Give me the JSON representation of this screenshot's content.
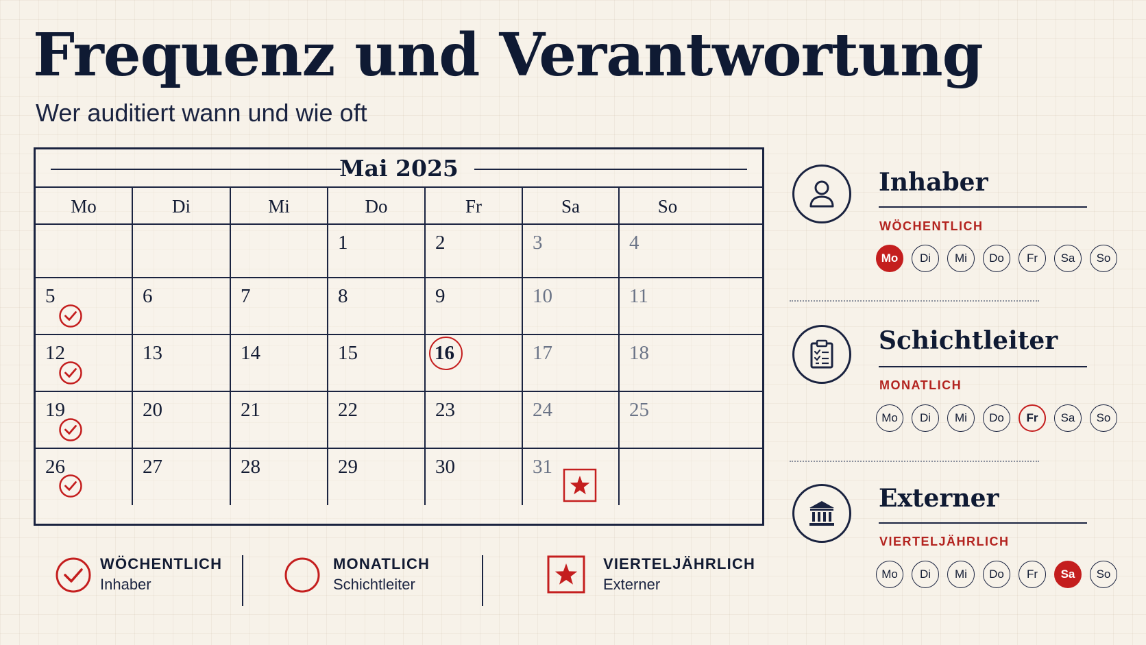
{
  "header": {
    "title": "Frequenz und Verantwortung",
    "subtitle": "Wer auditiert wann und wie oft"
  },
  "calendar": {
    "month_label": "Mai 2025",
    "weekdays": [
      "Mo",
      "Di",
      "Mi",
      "Do",
      "Fr",
      "Sa",
      "So"
    ],
    "weeks": [
      [
        "",
        "",
        "",
        "1",
        "2",
        "3",
        "4"
      ],
      [
        "5",
        "6",
        "7",
        "8",
        "9",
        "10",
        "11"
      ],
      [
        "12",
        "13",
        "14",
        "15",
        "16",
        "17",
        "18"
      ],
      [
        "19",
        "20",
        "21",
        "22",
        "23",
        "24",
        "25"
      ],
      [
        "26",
        "27",
        "28",
        "29",
        "30",
        "31",
        ""
      ]
    ],
    "weekly_audit_days": [
      "5",
      "12",
      "19",
      "26"
    ],
    "monthly_audit_day": "16",
    "quarterly_audit_day": "31"
  },
  "legend": [
    {
      "marker": "check-circle",
      "title": "WÖCHENTLICH",
      "role": "Inhaber"
    },
    {
      "marker": "circle",
      "title": "MONATLICH",
      "role": "Schichtleiter"
    },
    {
      "marker": "star-box",
      "title": "VIERTELJÄHRLICH",
      "role": "Externer"
    }
  ],
  "roles": [
    {
      "name": "Inhaber",
      "icon": "person-icon",
      "frequency": "WÖCHENTLICH",
      "days": [
        "Mo",
        "Di",
        "Mi",
        "Do",
        "Fr",
        "Sa",
        "So"
      ],
      "highlight_day": "Mo",
      "highlight_style": "filled"
    },
    {
      "name": "Schichtleiter",
      "icon": "clipboard-checklist-icon",
      "frequency": "MONATLICH",
      "days": [
        "Mo",
        "Di",
        "Mi",
        "Do",
        "Fr",
        "Sa",
        "So"
      ],
      "highlight_day": "Fr",
      "highlight_style": "ring"
    },
    {
      "name": "Externer",
      "icon": "institution-icon",
      "frequency": "VIERTELJÄHRLICH",
      "days": [
        "Mo",
        "Di",
        "Mi",
        "Do",
        "Fr",
        "Sa",
        "So"
      ],
      "highlight_day": "Sa",
      "highlight_style": "filled"
    }
  ],
  "colors": {
    "accent_red": "#c41e1e",
    "ink": "#121b33",
    "background": "#f7f2e9"
  }
}
